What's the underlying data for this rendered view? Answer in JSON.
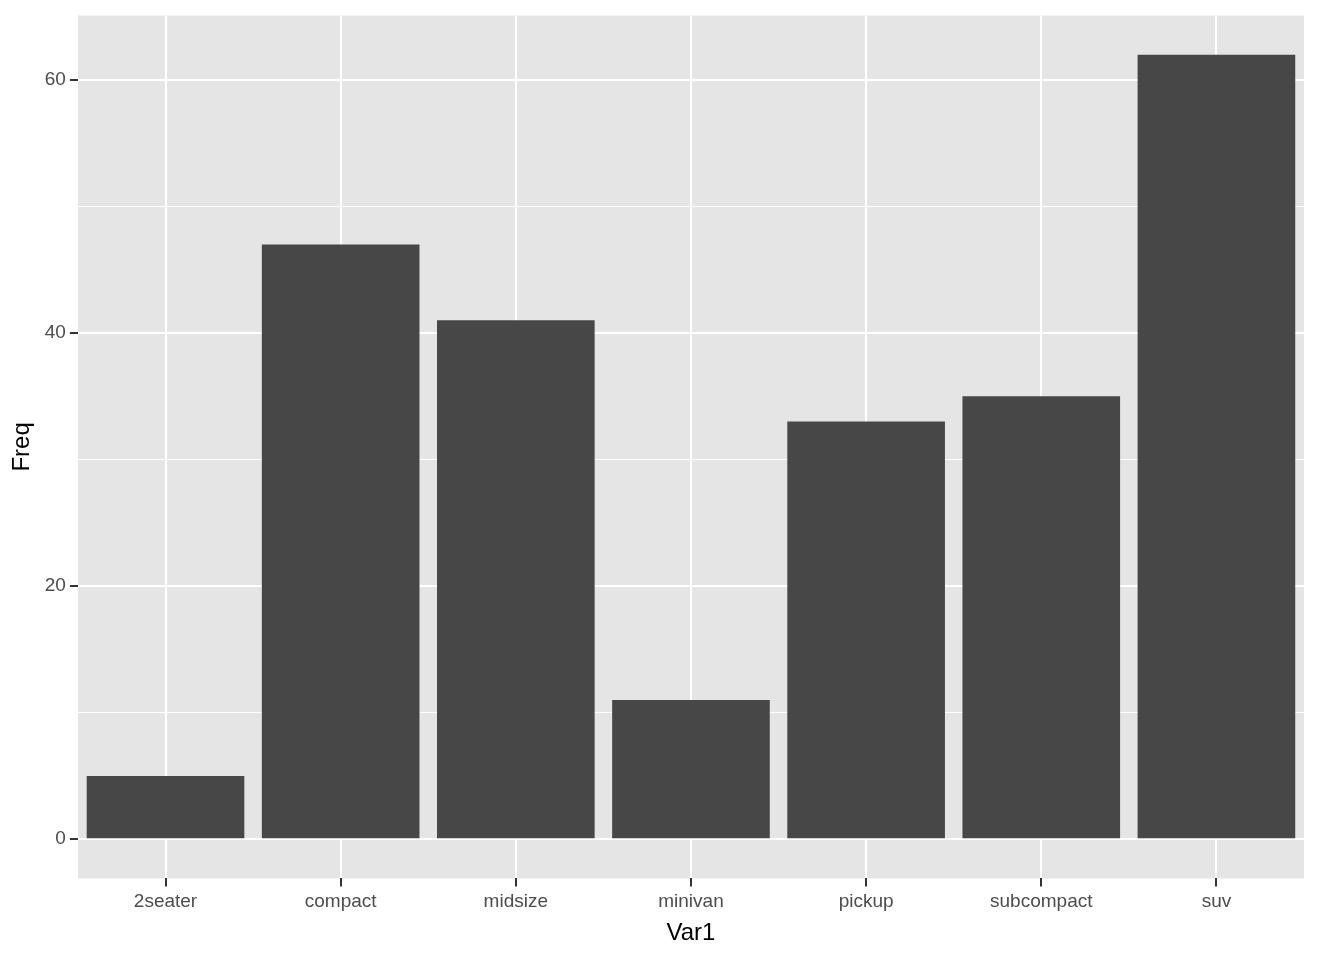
{
  "chart_data": {
    "type": "bar",
    "xlabel": "Var1",
    "ylabel": "Freq",
    "categories": [
      "2seater",
      "compact",
      "midsize",
      "minivan",
      "pickup",
      "subcompact",
      "suv"
    ],
    "values": [
      5,
      47,
      41,
      11,
      33,
      35,
      62
    ],
    "color": "#474747",
    "ylim": [
      -3.1,
      65.1
    ],
    "yticks": [
      0,
      {
        "value": 10,
        "label": null
      },
      20,
      {
        "value": 30,
        "label": null
      },
      40,
      {
        "value": 50,
        "label": null
      },
      60
    ],
    "grid": true,
    "legend": false
  }
}
